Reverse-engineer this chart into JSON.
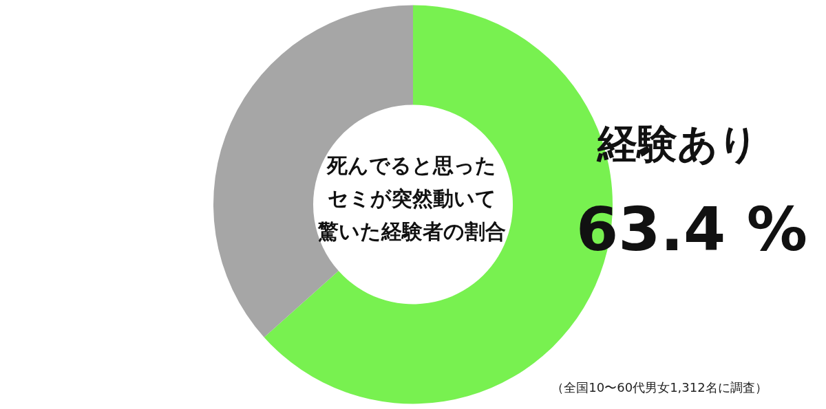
{
  "chart_data": {
    "type": "donut",
    "title": "死んでると思ったセミが突然動いて驚いた経験者の割合",
    "categories": [
      "経験あり",
      null
    ],
    "values": [
      63.4,
      36.6
    ],
    "colors": [
      "#78f150",
      "#a6a6a6"
    ],
    "value_labels": [
      "63.4 %",
      null
    ],
    "annotations": [
      "（全国10〜60代男女1,312名に調査）"
    ]
  }
}
